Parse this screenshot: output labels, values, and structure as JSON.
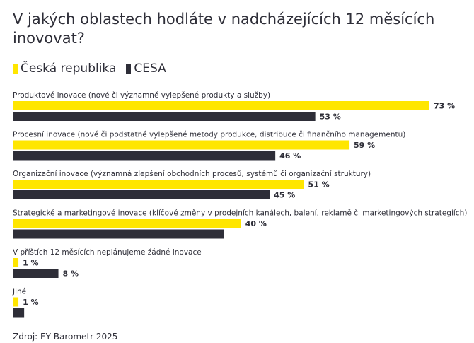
{
  "title": "V jakých oblastech hodláte v nadcházejících 12 měsících inovovat?",
  "source": "Zdroj: EY Barometr 2025",
  "colors": {
    "cr": "#ffe600",
    "cesa": "#2e2e38",
    "text": "#2e2e38"
  },
  "legend": [
    {
      "label": "Česká republika",
      "color": "#ffe600"
    },
    {
      "label": "CESA",
      "color": "#2e2e38"
    }
  ],
  "chart_data": {
    "type": "bar",
    "orientation": "horizontal",
    "grid": false,
    "legend_position": "top-left",
    "categories": [
      "Produktové inovace (nové či významně vylepšené produkty a služby)",
      "Procesní inovace (nové či podstatně vylepšené metody produkce, distribuce či finančního managementu)",
      "Organizační inovace (významná zlepšení obchodních procesů, systémů či organizační struktury)",
      "Strategické a marketingové inovace (klíčové změny v prodejních kanálech, balení, reklamě či marketingových strategiích)",
      "V příštích 12 měsících neplánujeme žádné inovace",
      "Jiné"
    ],
    "series": [
      {
        "name": "Česká republika",
        "values": [
          73,
          59,
          51,
          40,
          1,
          1
        ],
        "labels": [
          "73 %",
          "59 %",
          "51 %",
          "40 %",
          "1 %",
          "1 %"
        ]
      },
      {
        "name": "CESA",
        "values": [
          53,
          46,
          45,
          37,
          8,
          2
        ],
        "labels": [
          "53 %",
          "46 %",
          "45 %",
          "",
          "8 %",
          ""
        ]
      }
    ],
    "xlim": [
      0,
      80
    ]
  }
}
